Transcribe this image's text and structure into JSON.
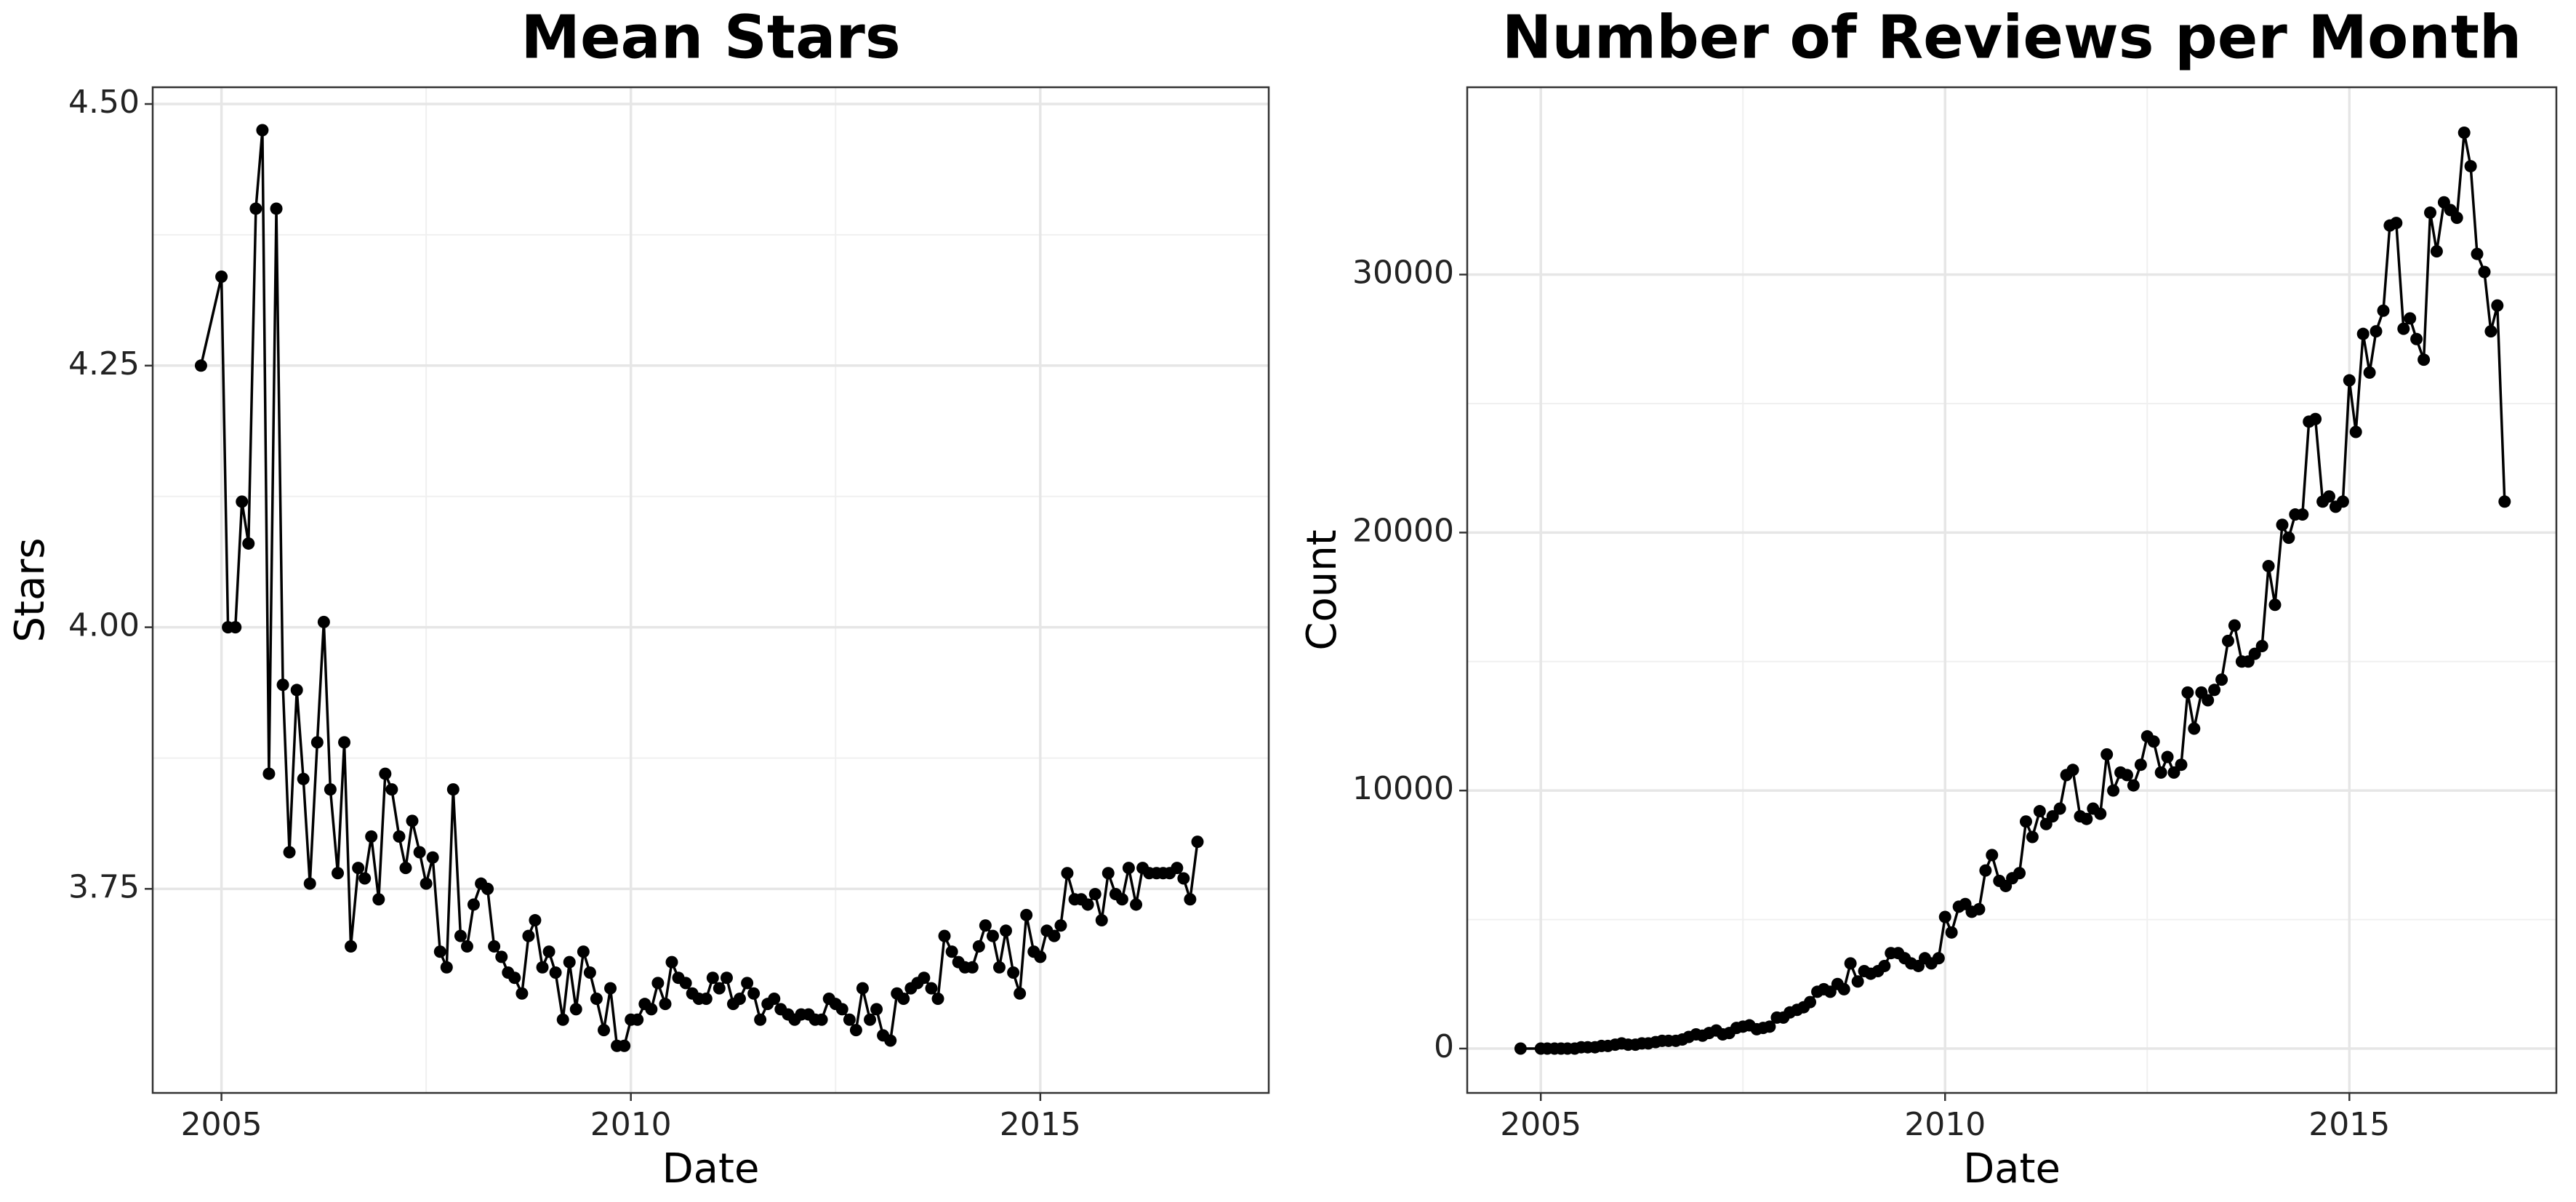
{
  "chart_data": [
    {
      "type": "line",
      "title": "Mean Stars",
      "x_label": "Date",
      "y_label": "Stars",
      "xlim": [
        2004.16,
        2017.79
      ],
      "xticks": [
        2005,
        2010,
        2015
      ],
      "ylim": [
        3.555,
        4.516
      ],
      "yticks": [
        {
          "value": 3.75,
          "label": "3.75"
        },
        {
          "value": 4.0,
          "label": "4.00"
        },
        {
          "value": 4.25,
          "label": "4.25"
        },
        {
          "value": 4.5,
          "label": "4.50"
        }
      ],
      "grid": true,
      "color": "#000000",
      "x": [
        2004.75,
        2005.0,
        2005.08,
        2005.17,
        2005.25,
        2005.33,
        2005.42,
        2005.5,
        2005.58,
        2005.67,
        2005.75,
        2005.83,
        2005.92,
        2006.0,
        2006.08,
        2006.17,
        2006.25,
        2006.33,
        2006.42,
        2006.5,
        2006.58,
        2006.67,
        2006.75,
        2006.83,
        2006.92,
        2007.0,
        2007.08,
        2007.17,
        2007.25,
        2007.33,
        2007.42,
        2007.5,
        2007.58,
        2007.67,
        2007.75,
        2007.83,
        2007.92,
        2008.0,
        2008.08,
        2008.17,
        2008.25,
        2008.33,
        2008.42,
        2008.5,
        2008.58,
        2008.67,
        2008.75,
        2008.83,
        2008.92,
        2009.0,
        2009.08,
        2009.17,
        2009.25,
        2009.33,
        2009.42,
        2009.5,
        2009.58,
        2009.67,
        2009.75,
        2009.83,
        2009.92,
        2010.0,
        2010.08,
        2010.17,
        2010.25,
        2010.33,
        2010.42,
        2010.5,
        2010.58,
        2010.67,
        2010.75,
        2010.83,
        2010.92,
        2011.0,
        2011.08,
        2011.17,
        2011.25,
        2011.33,
        2011.42,
        2011.5,
        2011.58,
        2011.67,
        2011.75,
        2011.83,
        2011.92,
        2012.0,
        2012.08,
        2012.17,
        2012.25,
        2012.33,
        2012.42,
        2012.5,
        2012.58,
        2012.67,
        2012.75,
        2012.83,
        2012.92,
        2013.0,
        2013.08,
        2013.17,
        2013.25,
        2013.33,
        2013.42,
        2013.5,
        2013.58,
        2013.67,
        2013.75,
        2013.83,
        2013.92,
        2014.0,
        2014.08,
        2014.17,
        2014.25,
        2014.33,
        2014.42,
        2014.5,
        2014.58,
        2014.67,
        2014.75,
        2014.83,
        2014.92,
        2015.0,
        2015.08,
        2015.17,
        2015.25,
        2015.33,
        2015.42,
        2015.5,
        2015.58,
        2015.67,
        2015.75,
        2015.83,
        2015.92,
        2016.0,
        2016.08,
        2016.17,
        2016.25,
        2016.33,
        2016.42,
        2016.5,
        2016.58,
        2016.67,
        2016.75,
        2016.83,
        2016.92
      ],
      "values": [
        4.25,
        4.335,
        4.0,
        4.0,
        4.12,
        4.08,
        4.4,
        4.475,
        3.86,
        4.4,
        3.945,
        3.785,
        3.94,
        3.855,
        3.755,
        3.89,
        4.005,
        3.845,
        3.765,
        3.89,
        3.695,
        3.77,
        3.76,
        3.8,
        3.74,
        3.86,
        3.845,
        3.8,
        3.77,
        3.815,
        3.785,
        3.755,
        3.78,
        3.69,
        3.675,
        3.845,
        3.705,
        3.695,
        3.735,
        3.755,
        3.75,
        3.695,
        3.685,
        3.67,
        3.665,
        3.65,
        3.705,
        3.72,
        3.675,
        3.69,
        3.67,
        3.625,
        3.68,
        3.635,
        3.69,
        3.67,
        3.645,
        3.615,
        3.655,
        3.6,
        3.6,
        3.625,
        3.625,
        3.64,
        3.635,
        3.66,
        3.64,
        3.68,
        3.665,
        3.66,
        3.65,
        3.645,
        3.645,
        3.665,
        3.655,
        3.665,
        3.64,
        3.645,
        3.66,
        3.65,
        3.625,
        3.64,
        3.645,
        3.635,
        3.63,
        3.625,
        3.63,
        3.63,
        3.625,
        3.625,
        3.645,
        3.64,
        3.635,
        3.625,
        3.615,
        3.655,
        3.625,
        3.635,
        3.61,
        3.605,
        3.65,
        3.645,
        3.655,
        3.66,
        3.665,
        3.655,
        3.645,
        3.705,
        3.69,
        3.68,
        3.675,
        3.675,
        3.695,
        3.715,
        3.705,
        3.675,
        3.71,
        3.67,
        3.65,
        3.725,
        3.69,
        3.685,
        3.71,
        3.705,
        3.715,
        3.765,
        3.74,
        3.74,
        3.735,
        3.745,
        3.72,
        3.765,
        3.745,
        3.74,
        3.77,
        3.735,
        3.77,
        3.765,
        3.765,
        3.765,
        3.765,
        3.77,
        3.76,
        3.74,
        3.795
      ]
    },
    {
      "type": "line",
      "title": "Number of Reviews per Month",
      "x_label": "Date",
      "y_label": "Count",
      "xlim": [
        2004.09,
        2017.56
      ],
      "xticks": [
        2005,
        2010,
        2015
      ],
      "ylim": [
        -1720,
        37260
      ],
      "yticks": [
        0,
        10000,
        20000,
        30000
      ],
      "grid": true,
      "color": "#000000",
      "x": [
        2004.75,
        2005.0,
        2005.08,
        2005.17,
        2005.25,
        2005.33,
        2005.42,
        2005.5,
        2005.58,
        2005.67,
        2005.75,
        2005.83,
        2005.92,
        2006.0,
        2006.08,
        2006.17,
        2006.25,
        2006.33,
        2006.42,
        2006.5,
        2006.58,
        2006.67,
        2006.75,
        2006.83,
        2006.92,
        2007.0,
        2007.08,
        2007.17,
        2007.25,
        2007.33,
        2007.42,
        2007.5,
        2007.58,
        2007.67,
        2007.75,
        2007.83,
        2007.92,
        2008.0,
        2008.08,
        2008.17,
        2008.25,
        2008.33,
        2008.42,
        2008.5,
        2008.58,
        2008.67,
        2008.75,
        2008.83,
        2008.92,
        2009.0,
        2009.08,
        2009.17,
        2009.25,
        2009.33,
        2009.42,
        2009.5,
        2009.58,
        2009.67,
        2009.75,
        2009.83,
        2009.92,
        2010.0,
        2010.08,
        2010.17,
        2010.25,
        2010.33,
        2010.42,
        2010.5,
        2010.58,
        2010.67,
        2010.75,
        2010.83,
        2010.92,
        2011.0,
        2011.08,
        2011.17,
        2011.25,
        2011.33,
        2011.42,
        2011.5,
        2011.58,
        2011.67,
        2011.75,
        2011.83,
        2011.92,
        2012.0,
        2012.08,
        2012.17,
        2012.25,
        2012.33,
        2012.42,
        2012.5,
        2012.58,
        2012.67,
        2012.75,
        2012.83,
        2012.92,
        2013.0,
        2013.08,
        2013.17,
        2013.25,
        2013.33,
        2013.42,
        2013.5,
        2013.58,
        2013.67,
        2013.75,
        2013.83,
        2013.92,
        2014.0,
        2014.08,
        2014.17,
        2014.25,
        2014.33,
        2014.42,
        2014.5,
        2014.58,
        2014.67,
        2014.75,
        2014.83,
        2014.92,
        2015.0,
        2015.08,
        2015.17,
        2015.25,
        2015.33,
        2015.42,
        2015.5,
        2015.58,
        2015.67,
        2015.75,
        2015.83,
        2015.92,
        2016.0,
        2016.08,
        2016.17,
        2016.25,
        2016.33,
        2016.42,
        2016.5,
        2016.58,
        2016.67,
        2016.75,
        2016.83,
        2016.92
      ],
      "values": [
        0,
        0,
        0,
        0,
        0,
        0,
        0,
        50,
        50,
        50,
        100,
        100,
        150,
        200,
        150,
        150,
        200,
        200,
        250,
        300,
        300,
        300,
        350,
        450,
        550,
        500,
        600,
        700,
        550,
        600,
        800,
        850,
        900,
        750,
        800,
        850,
        1200,
        1200,
        1400,
        1500,
        1600,
        1800,
        2200,
        2300,
        2200,
        2500,
        2300,
        3300,
        2600,
        3000,
        2900,
        3000,
        3200,
        3700,
        3700,
        3500,
        3300,
        3200,
        3500,
        3300,
        3500,
        5100,
        4500,
        5500,
        5600,
        5300,
        5400,
        6900,
        7500,
        6500,
        6300,
        6600,
        6800,
        8800,
        8200,
        9200,
        8700,
        9000,
        9300,
        10600,
        10800,
        9000,
        8900,
        9300,
        9100,
        11400,
        10000,
        10700,
        10600,
        10200,
        11000,
        12100,
        11900,
        10700,
        11300,
        10700,
        11000,
        13800,
        12400,
        13800,
        13500,
        13900,
        14300,
        15800,
        16400,
        15000,
        15000,
        15300,
        15600,
        18700,
        17200,
        20300,
        19800,
        20700,
        20700,
        24300,
        24400,
        21200,
        21400,
        21000,
        21200,
        25900,
        23900,
        27700,
        26200,
        27800,
        28600,
        31900,
        32000,
        27900,
        28300,
        27500,
        26700,
        32400,
        30900,
        32800,
        32500,
        32200,
        35500,
        34200,
        30800,
        30100,
        27800,
        28800,
        21200
      ]
    }
  ]
}
